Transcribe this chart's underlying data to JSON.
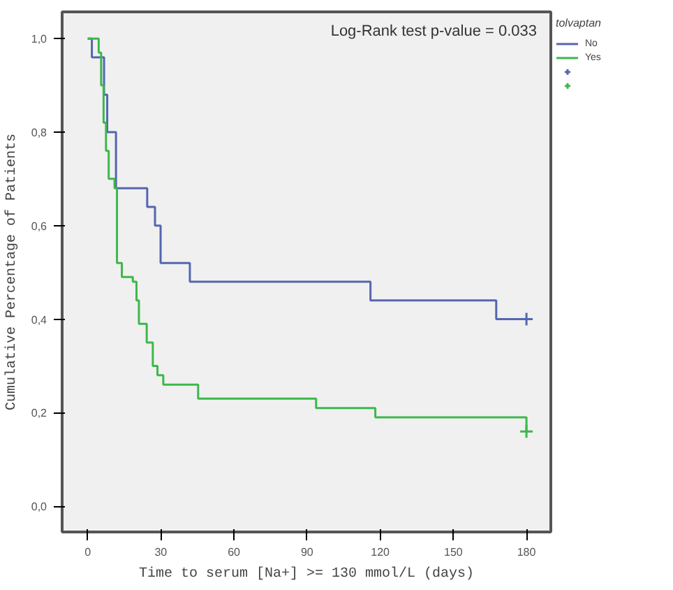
{
  "chart_data": {
    "type": "step",
    "xlabel": "Time to serum [Na+] >= 130 mmol/L (days)",
    "ylabel": "Cumulative Percentage of Patients",
    "legend_title": "tolvaptan",
    "annotations": [
      "Log-Rank test p-value = 0.033"
    ],
    "xlim": [
      -10.5,
      190
    ],
    "ylim": [
      -0.055,
      1.057
    ],
    "xticks": [
      0,
      30,
      60,
      90,
      120,
      150,
      180
    ],
    "yticks": [
      {
        "value": 0.0,
        "label": "0,0"
      },
      {
        "value": 0.2,
        "label": "0,2"
      },
      {
        "value": 0.4,
        "label": "0,4"
      },
      {
        "value": 0.6,
        "label": "0,6"
      },
      {
        "value": 0.8,
        "label": "0,8"
      },
      {
        "value": 1.0,
        "label": "1,0"
      }
    ],
    "grid": false,
    "legend": "top right",
    "series": [
      {
        "name": "No",
        "color": "#5566b0",
        "x": [
          0,
          1.7,
          6.7,
          8,
          11.6,
          24.4,
          27.6,
          29.9,
          41.9,
          116,
          167.6,
          180
        ],
        "values": [
          1.0,
          0.96,
          0.88,
          0.8,
          0.68,
          0.64,
          0.6,
          0.52,
          0.48,
          0.44,
          0.4,
          0.4
        ]
      },
      {
        "name": "Yes",
        "color": "#3cb84a",
        "x": [
          0,
          4.5,
          5.5,
          6.5,
          7.5,
          8.6,
          11,
          12,
          14,
          18.5,
          20,
          21,
          24.2,
          26.7,
          28.6,
          31,
          45.3,
          93.7,
          118,
          180
        ],
        "values": [
          1.0,
          0.97,
          0.9,
          0.82,
          0.76,
          0.7,
          0.68,
          0.52,
          0.49,
          0.48,
          0.44,
          0.39,
          0.35,
          0.3,
          0.28,
          0.26,
          0.23,
          0.21,
          0.19,
          0.16
        ]
      },
      {
        "type": "scatter",
        "marker": "cross",
        "color": "#5566b0",
        "x": [
          180
        ],
        "values": [
          0.4
        ]
      },
      {
        "type": "scatter",
        "marker": "cross",
        "color": "#3cb84a",
        "x": [
          180
        ],
        "values": [
          0.16
        ]
      }
    ]
  }
}
